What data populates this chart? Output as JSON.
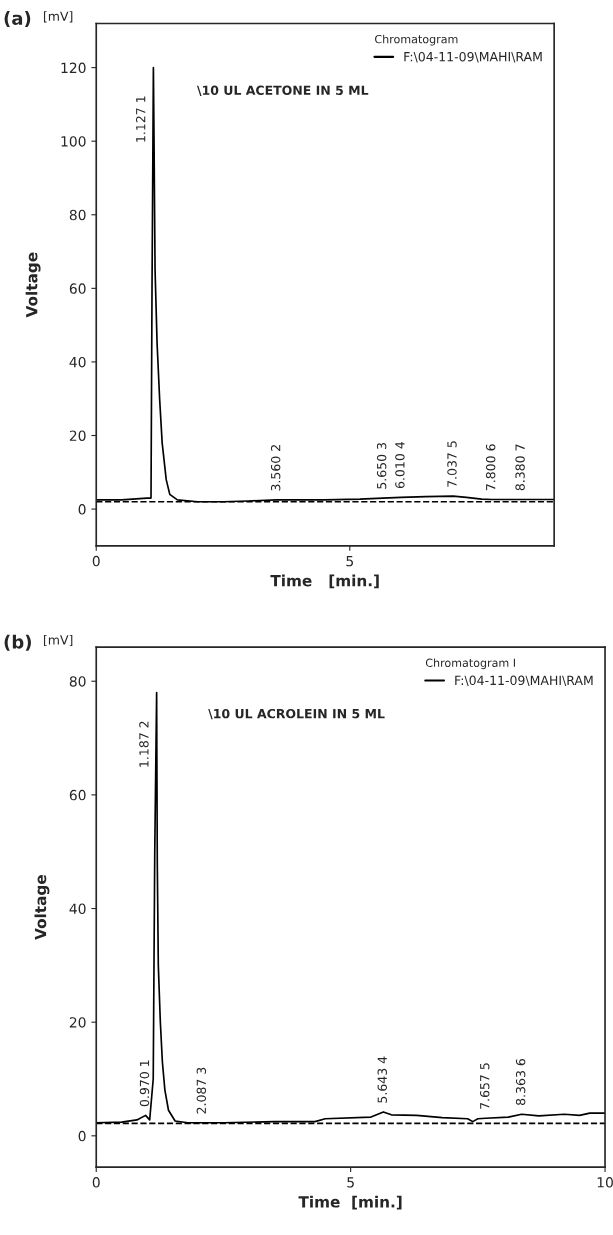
{
  "chart_data": [
    {
      "type": "line",
      "title": "(a)",
      "subtitle": "\\10 UL ACETONE IN 5 ML",
      "xlabel": "Time   [min.]",
      "ylabel": "Voltage",
      "legend_title": "Chromatogram",
      "legend": "top right",
      "xlim": [
        0,
        9.03
      ],
      "ylim": [
        -10,
        132
      ],
      "xticks": [
        0,
        5
      ],
      "yticks": [
        0,
        20,
        40,
        60,
        80,
        100,
        120
      ],
      "grid": false,
      "series": [
        {
          "name": "F:\\04-11-09\\MAHI\\RAM",
          "color": "#000000",
          "line_style": "solid",
          "x": [
            0,
            0.5,
            1.0,
            1.08,
            1.1,
            1.127,
            1.14,
            1.16,
            1.2,
            1.25,
            1.3,
            1.38,
            1.45,
            1.6,
            2.0,
            2.5,
            3.0,
            3.56,
            4.5,
            5.2,
            5.65,
            6.01,
            6.5,
            7.037,
            7.3,
            7.6,
            7.8,
            8.0,
            8.38,
            9.03
          ],
          "values": [
            2.5,
            2.5,
            3,
            3,
            60,
            120,
            100,
            65,
            45,
            30,
            18,
            8,
            4,
            2.5,
            2,
            2,
            2.2,
            2.5,
            2.5,
            2.7,
            3,
            3.2,
            3.4,
            3.5,
            3.2,
            2.7,
            2.6,
            2.6,
            2.6,
            2.6
          ]
        },
        {
          "color": "#000000",
          "line_style": "dashed",
          "x": [
            0,
            9.03
          ],
          "values": [
            2,
            2
          ]
        }
      ],
      "annotations": [
        "[mV]",
        {
          "text": "1.127 1",
          "x": 1.127,
          "y": 120
        },
        {
          "text": "3.560 2",
          "x": 3.56,
          "y": 2.5
        },
        {
          "text": "5.650 3",
          "x": 5.65,
          "y": 3
        },
        {
          "text": "6.010 4",
          "x": 6.01,
          "y": 3.2
        },
        {
          "text": "7.037 5",
          "x": 7.037,
          "y": 3.5
        },
        {
          "text": "7.800 6",
          "x": 7.8,
          "y": 2.6
        },
        {
          "text": "8.380 7",
          "x": 8.38,
          "y": 2.6
        }
      ]
    },
    {
      "type": "line",
      "title": "(b)",
      "subtitle": "\\10 UL ACROLEIN IN 5 ML",
      "xlabel": "Time  [min.]",
      "ylabel": "Voltage",
      "legend_title": "Chromatogram I",
      "legend": "top right",
      "xlim": [
        0,
        10
      ],
      "ylim": [
        -5.5,
        86
      ],
      "xticks": [
        0,
        5,
        10
      ],
      "yticks": [
        0,
        20,
        40,
        60,
        80
      ],
      "grid": false,
      "series": [
        {
          "name": "F:\\04-11-09\\MAHI\\RAM",
          "color": "#000000",
          "line_style": "solid",
          "x": [
            0,
            0.5,
            0.8,
            0.97,
            1.05,
            1.12,
            1.15,
            1.187,
            1.2,
            1.22,
            1.26,
            1.3,
            1.35,
            1.42,
            1.55,
            1.8,
            2.087,
            2.5,
            3.5,
            4.3,
            4.5,
            5.4,
            5.643,
            5.8,
            6.3,
            6.8,
            7.3,
            7.4,
            7.5,
            7.657,
            8.1,
            8.363,
            8.7,
            9.2,
            9.5,
            9.7,
            10
          ],
          "values": [
            2.3,
            2.4,
            2.8,
            3.6,
            2.8,
            10,
            50,
            78,
            48,
            30,
            20,
            13,
            8,
            4.5,
            2.6,
            2.3,
            2.3,
            2.3,
            2.5,
            2.5,
            3,
            3.3,
            4.2,
            3.7,
            3.6,
            3.2,
            3.0,
            2.5,
            3.0,
            3.1,
            3.3,
            3.8,
            3.5,
            3.8,
            3.6,
            4,
            4
          ]
        },
        {
          "color": "#000000",
          "line_style": "dashed",
          "x": [
            0,
            10
          ],
          "values": [
            2.2,
            2.2
          ]
        }
      ],
      "annotations": [
        "[mV]",
        {
          "text": "0.970 1",
          "x": 0.97,
          "y": 3.6
        },
        {
          "text": "1.187 2",
          "x": 1.187,
          "y": 78
        },
        {
          "text": "2.087 3",
          "x": 2.087,
          "y": 2.3
        },
        {
          "text": "5.643 4",
          "x": 5.643,
          "y": 4.2
        },
        {
          "text": "7.657 5",
          "x": 7.657,
          "y": 3.1
        },
        {
          "text": "8.363 6",
          "x": 8.363,
          "y": 3.8
        }
      ]
    }
  ]
}
